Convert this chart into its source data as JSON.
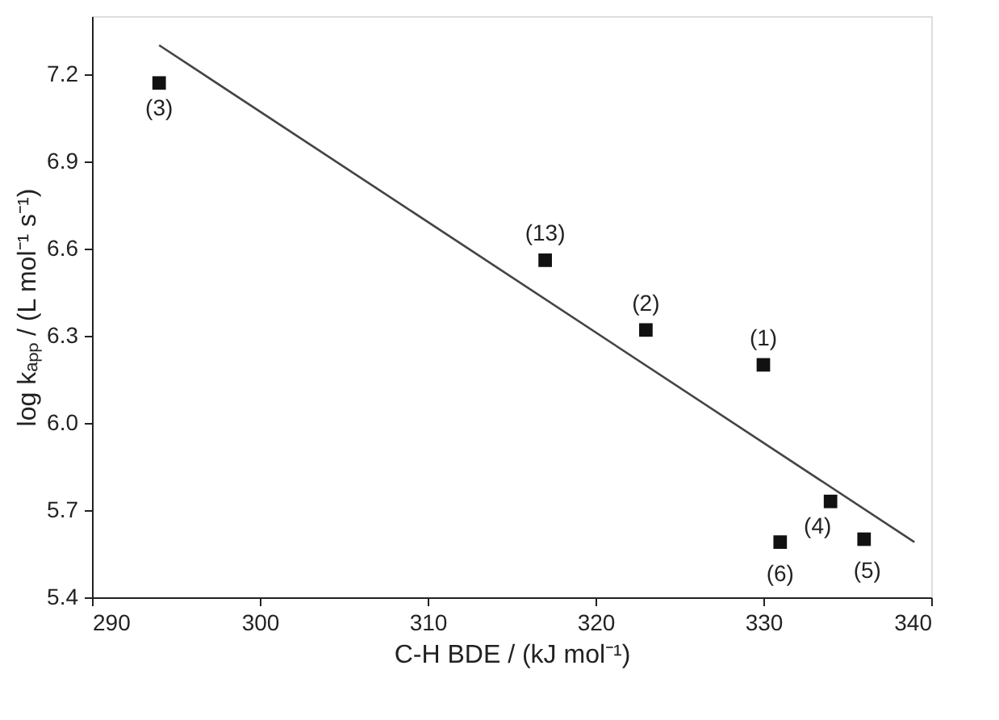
{
  "chart_data": {
    "type": "scatter",
    "xlabel": "C-H BDE / (kJ mol⁻¹)",
    "ylabel": "log kₐₚₚ / (L mol⁻¹ s⁻¹)",
    "series": [
      {
        "color": "#111111",
        "marker": "square",
        "x": [
          294,
          317,
          323,
          330,
          334,
          331,
          336
        ],
        "values": [
          7.17,
          6.56,
          6.32,
          6.2,
          5.73,
          5.59,
          5.6
        ]
      },
      {
        "type": "line",
        "color": "#444444",
        "marker": "none",
        "line_style": "solid",
        "x": [
          294,
          339
        ],
        "values": [
          7.3,
          5.59
        ]
      }
    ],
    "annotations": [
      {
        "text": "(3)",
        "x": 294,
        "y": 7.17
      },
      {
        "text": "(13)",
        "x": 317,
        "y": 6.56
      },
      {
        "text": "(2)",
        "x": 323,
        "y": 6.32
      },
      {
        "text": "(1)",
        "x": 330,
        "y": 6.2
      },
      {
        "text": "(4)",
        "x": 334,
        "y": 5.73
      },
      {
        "text": "(6)",
        "x": 331,
        "y": 5.59
      },
      {
        "text": "(5)",
        "x": 336,
        "y": 5.6
      }
    ],
    "xlim": [
      290,
      340
    ],
    "ylim": [
      5.4,
      7.4
    ],
    "xticks": [
      290,
      300,
      310,
      320,
      330,
      340
    ],
    "yticks": [
      5.4,
      5.7,
      {
        "value": 6.0,
        "label": "6.0"
      },
      6.3,
      6.6,
      6.9,
      7.2
    ],
    "grid": false
  }
}
